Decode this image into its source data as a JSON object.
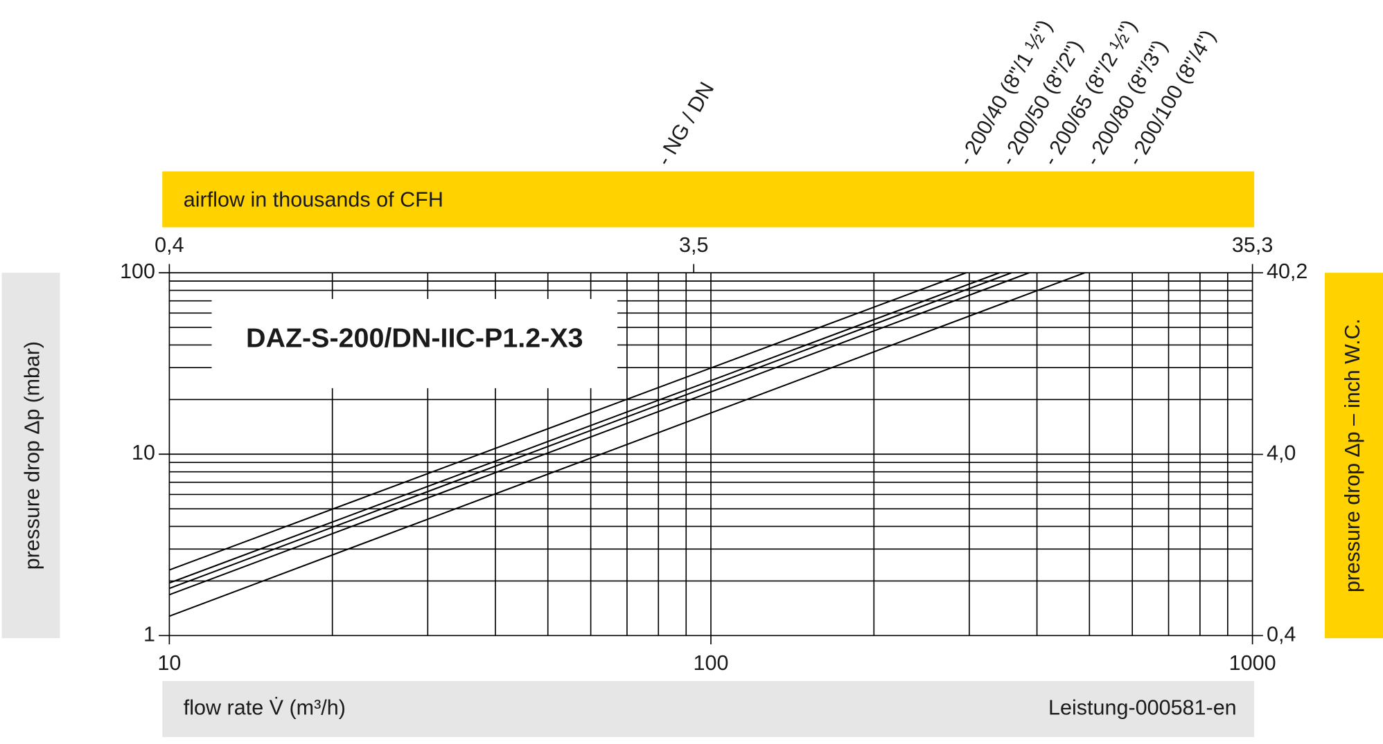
{
  "chart_data": {
    "type": "line",
    "title": "DAZ-S-200/DN-IIC-P1.2-X3",
    "header_label": "- NG / DN",
    "xlabel": "flow rate V̇ (m³/h)",
    "x2label": "airflow in thousands of CFH",
    "ylabel": "pressure drop Δp (mbar)",
    "y2label": "pressure drop Δp – inch W.C.",
    "note": "Leistung-000581-en",
    "xscale": "log",
    "yscale": "log",
    "grid": true,
    "xlim": [
      10,
      1000
    ],
    "xticks": [
      10,
      100,
      1000
    ],
    "ylim": [
      1,
      100
    ],
    "yticks": [
      1,
      10,
      100
    ],
    "x2lim": [
      0.4,
      35.3
    ],
    "x2ticks": [
      {
        "value": 0.4,
        "label": "0,4"
      },
      {
        "value": 3.5,
        "label": "3,5"
      },
      {
        "value": 35.3,
        "label": "35,3"
      }
    ],
    "y2lim": [
      0.4,
      40.2
    ],
    "y2ticks": [
      {
        "value": 0.4,
        "label": "0,4"
      },
      {
        "value": 4.0,
        "label": "4,0"
      },
      {
        "value": 40.2,
        "label": "40,2"
      }
    ],
    "series": [
      {
        "name": "- 200/40 (8\"/1 ½\")",
        "color": "#000000",
        "x": [
          10,
          296
        ],
        "values": [
          2.3,
          100
        ]
      },
      {
        "name": "- 200/50 (8\"/2\")",
        "color": "#000000",
        "x": [
          10,
          341
        ],
        "values": [
          1.95,
          100
        ]
      },
      {
        "name": "- 200/65 (8\"/2 ½\")",
        "color": "#000000",
        "x": [
          10,
          359
        ],
        "values": [
          1.82,
          100
        ]
      },
      {
        "name": "- 200/80 (8\"/3\")",
        "color": "#000000",
        "x": [
          10,
          387
        ],
        "values": [
          1.68,
          100
        ]
      },
      {
        "name": "- 200/100 (8\"/4\")",
        "color": "#000000",
        "x": [
          10,
          490
        ],
        "values": [
          1.28,
          100
        ]
      }
    ]
  }
}
